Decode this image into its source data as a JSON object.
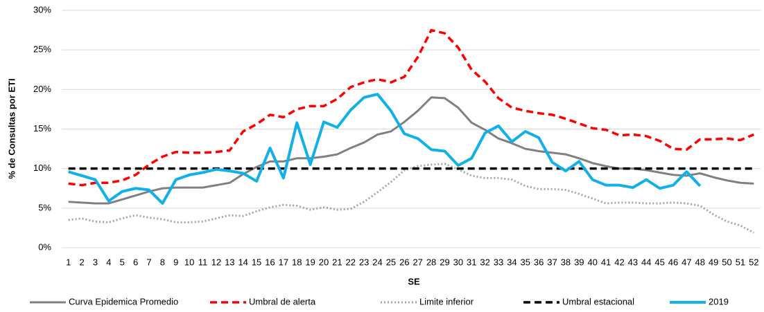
{
  "chart_data": {
    "type": "line",
    "x_label": "SE",
    "y_label": "% de Consultas por ETI",
    "categories": [
      1,
      2,
      3,
      4,
      5,
      6,
      7,
      8,
      9,
      10,
      11,
      12,
      13,
      14,
      15,
      16,
      17,
      18,
      19,
      20,
      21,
      22,
      23,
      24,
      25,
      26,
      27,
      28,
      29,
      30,
      31,
      32,
      33,
      34,
      35,
      36,
      37,
      38,
      39,
      40,
      41,
      42,
      43,
      44,
      45,
      46,
      47,
      48,
      49,
      50,
      51,
      52
    ],
    "ylim": [
      0,
      30
    ],
    "yticks": [
      {
        "value": 0,
        "label": "0%"
      },
      {
        "value": 5,
        "label": "5%"
      },
      {
        "value": 10,
        "label": "10%"
      },
      {
        "value": 15,
        "label": "15%"
      },
      {
        "value": 20,
        "label": "20%"
      },
      {
        "value": 25,
        "label": "25%"
      },
      {
        "value": 30,
        "label": "30%"
      }
    ],
    "grid": true,
    "legend": "bottom",
    "series": [
      {
        "name": "Curva Epidemica Promedio",
        "color": "#808080",
        "dash": "solid",
        "values": [
          5.8,
          5.7,
          5.6,
          5.6,
          6.1,
          6.6,
          7.1,
          7.5,
          7.6,
          7.6,
          7.6,
          7.9,
          8.2,
          9.3,
          10.2,
          10.9,
          10.9,
          11.3,
          11.3,
          11.5,
          11.8,
          12.6,
          13.3,
          14.3,
          14.7,
          15.9,
          17.3,
          19.0,
          18.9,
          17.7,
          15.8,
          14.9,
          13.8,
          13.2,
          12.5,
          12.2,
          12.0,
          11.8,
          11.3,
          10.7,
          10.3,
          10.0,
          10.0,
          9.8,
          9.5,
          9.2,
          9.1,
          9.4,
          8.9,
          8.5,
          8.2,
          8.1
        ]
      },
      {
        "name": "Umbral de alerta",
        "color": "#ff0000",
        "dash": "dashed",
        "values": [
          8.1,
          7.9,
          8.2,
          8.2,
          8.5,
          9.2,
          10.5,
          11.5,
          12.1,
          12.0,
          12.0,
          12.1,
          12.3,
          14.7,
          15.6,
          16.8,
          16.5,
          17.5,
          17.9,
          17.9,
          18.8,
          20.3,
          20.9,
          21.3,
          20.9,
          21.6,
          24.1,
          27.5,
          27.1,
          25.3,
          22.5,
          21.0,
          18.9,
          17.7,
          17.3,
          17.0,
          16.8,
          16.3,
          15.7,
          15.1,
          14.9,
          14.2,
          14.3,
          14.1,
          13.5,
          12.5,
          12.4,
          13.7,
          13.7,
          13.8,
          13.6,
          14.3
        ]
      },
      {
        "name": "Limite inferior",
        "color": "#a6a6a6",
        "dash": "dotted",
        "values": [
          3.5,
          3.7,
          3.3,
          3.2,
          3.7,
          4.1,
          3.8,
          3.6,
          3.2,
          3.2,
          3.3,
          3.7,
          4.1,
          4.0,
          4.6,
          5.1,
          5.4,
          5.3,
          4.8,
          5.1,
          4.8,
          4.9,
          5.8,
          7.0,
          8.3,
          9.8,
          10.3,
          10.5,
          10.6,
          9.9,
          9.1,
          8.8,
          8.8,
          8.6,
          7.8,
          7.4,
          7.4,
          7.3,
          6.8,
          6.2,
          5.6,
          5.7,
          5.7,
          5.6,
          5.6,
          5.7,
          5.6,
          5.3,
          4.2,
          3.3,
          2.8,
          1.9
        ]
      },
      {
        "name": "Umbral estacional",
        "color": "#000000",
        "dash": "dashed",
        "values": [
          10,
          10,
          10,
          10,
          10,
          10,
          10,
          10,
          10,
          10,
          10,
          10,
          10,
          10,
          10,
          10,
          10,
          10,
          10,
          10,
          10,
          10,
          10,
          10,
          10,
          10,
          10,
          10,
          10,
          10,
          10,
          10,
          10,
          10,
          10,
          10,
          10,
          10,
          10,
          10,
          10,
          10,
          10,
          10,
          10,
          10,
          10,
          10,
          10,
          10,
          10,
          10
        ]
      },
      {
        "name": "2019",
        "color": "#12b0e8",
        "dash": "solid",
        "values": [
          9.6,
          9.1,
          8.6,
          5.9,
          7.1,
          7.5,
          7.3,
          5.6,
          8.6,
          9.2,
          9.5,
          9.9,
          9.7,
          9.4,
          8.4,
          12.6,
          8.8,
          15.8,
          10.5,
          15.9,
          15.2,
          17.4,
          19.0,
          19.4,
          17.3,
          14.4,
          13.8,
          12.4,
          12.2,
          10.4,
          11.3,
          14.5,
          15.4,
          13.4,
          14.7,
          13.9,
          10.8,
          9.7,
          10.9,
          8.6,
          7.9,
          7.9,
          7.6,
          8.6,
          7.5,
          7.9,
          9.6,
          7.8,
          null,
          null,
          null,
          null
        ]
      }
    ]
  }
}
